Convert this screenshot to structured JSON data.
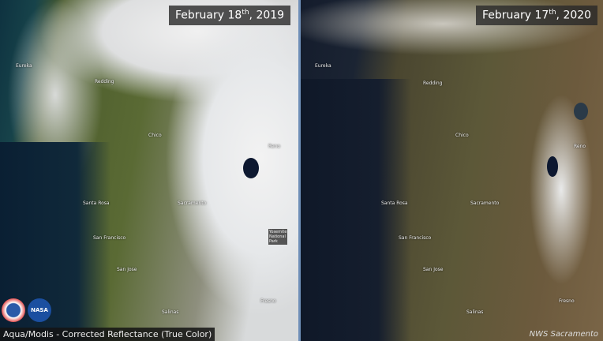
{
  "left_panel": {
    "date": "February 18",
    "date_sup": "th",
    "year": ", 2019",
    "cities": [
      "Eureka",
      "Redding",
      "Chico",
      "Reno",
      "Santa Rosa",
      "Sacramento",
      "San Francisco",
      "San Jose",
      "Salinas",
      "Fresno"
    ],
    "park_label": "Yosemite National Park",
    "caption": "Aqua/Modis - Corrected Reflectance (True Color)",
    "logos": [
      "NOAA",
      "NASA"
    ]
  },
  "right_panel": {
    "date": "February 17",
    "date_sup": "th",
    "year": ", 2020",
    "cities": [
      "Eureka",
      "Redding",
      "Chico",
      "Reno",
      "Santa Rosa",
      "Sacramento",
      "San Francisco",
      "San Jose",
      "Salinas",
      "Fresno"
    ],
    "credit": "NWS Sacramento"
  }
}
